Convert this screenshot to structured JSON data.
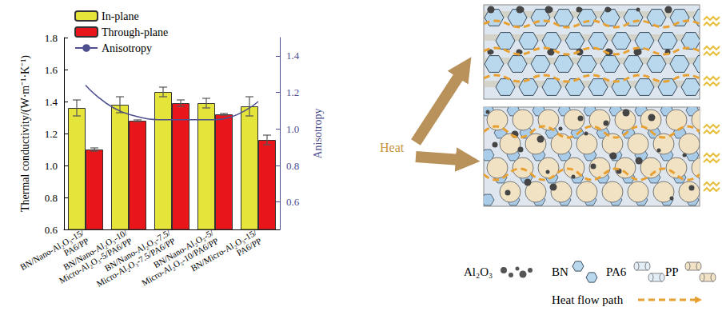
{
  "chart_data": {
    "type": "bar",
    "categories": [
      "BN/Nano-Al₂O₃-15/PA6/PP",
      "BN/Nano-Al₂O₃-10/Micro-Al₂O₃-5/PA6/PP",
      "BN/Nano-Al₂O₃-7.5/Micro-Al₂O₃-7.5/PA6/PP",
      "BN/Nano-Al₂O₃-5/Micro-Al₂O₃-10/PA6/PP",
      "BN/Micro-Al₂O₃-15/PA6/PP"
    ],
    "series": [
      {
        "name": "In-plane",
        "type": "bar",
        "color": "#e4e43a",
        "values": [
          1.36,
          1.38,
          1.46,
          1.39,
          1.37
        ],
        "errors": [
          0.05,
          0.05,
          0.03,
          0.03,
          0.06
        ]
      },
      {
        "name": "Through-plane",
        "type": "bar",
        "color": "#e8151b",
        "values": [
          1.1,
          1.28,
          1.39,
          1.32,
          1.16
        ],
        "errors": [
          0.01,
          0.005,
          0.02,
          0.005,
          0.03
        ]
      },
      {
        "name": "Anisotropy",
        "type": "line",
        "axis": "y2",
        "color": "#4d4f8f",
        "marker": "none",
        "values": [
          1.24,
          1.08,
          1.05,
          1.05,
          1.15
        ]
      }
    ],
    "y_label": "Thermal conductivity/(W·m⁻¹·K⁻¹)",
    "y2_label": "Anisotropy",
    "ylim": [
      0.6,
      1.8
    ],
    "yticks": [
      0.6,
      0.8,
      {
        "value": 1,
        "label": "1.0"
      },
      1.2,
      1.4,
      1.6,
      1.8
    ],
    "y2lim": [
      0.45,
      1.5
    ],
    "y2ticks": [
      0.6,
      0.8,
      {
        "value": 1,
        "label": "1.0"
      },
      1.2,
      1.4
    ],
    "grid": false,
    "legend": "upper left"
  },
  "diagram": {
    "input_label": "Heat",
    "legend": [
      {
        "label": "Al₂O₃"
      },
      {
        "label": "BN"
      },
      {
        "label": "PA6"
      },
      {
        "label": "PP"
      }
    ],
    "path_label": "Heat flow path"
  }
}
